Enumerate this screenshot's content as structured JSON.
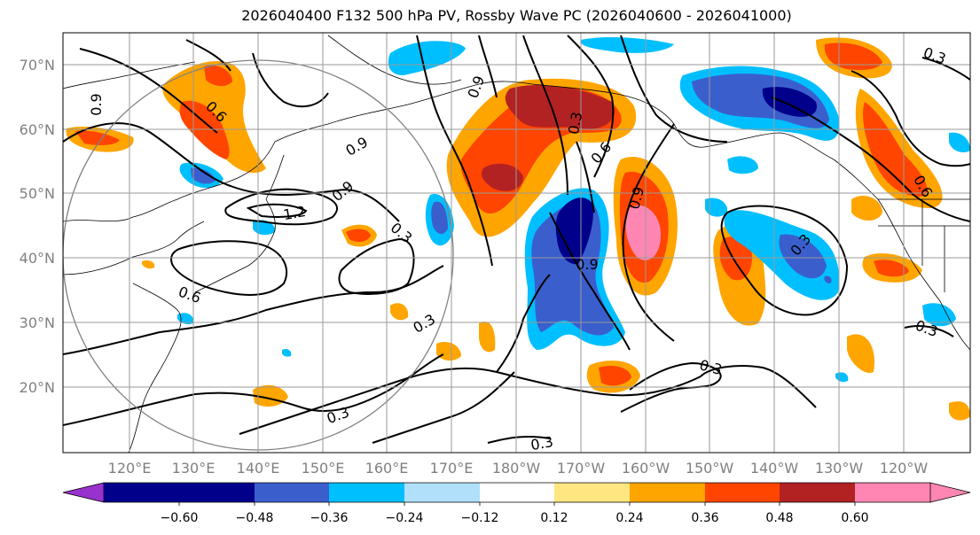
{
  "title": "2026040400 F132 500 hPa PV, Rossby Wave PC (2026040600 - 2026041000)",
  "map": {
    "lat_labels": [
      "70°N",
      "60°N",
      "50°N",
      "40°N",
      "30°N",
      "20°N"
    ],
    "lon_labels": [
      "120°E",
      "130°E",
      "140°E",
      "150°E",
      "160°E",
      "170°E",
      "180°W",
      "170°W",
      "160°W",
      "150°W",
      "140°W",
      "130°W",
      "120°W"
    ],
    "contour_labels": [
      "0.9",
      "0.6",
      "0.9",
      "0.9",
      "1.2",
      "0.3",
      "0.6",
      "0.3",
      "0.9",
      "0.3",
      "0.9",
      "0.9",
      "0.6",
      "0.3",
      "0.3",
      "0.3",
      "0.3",
      "0.6",
      "0.3",
      "0.3"
    ]
  },
  "colorbar": {
    "ticks": [
      "−0.60",
      "−0.48",
      "−0.36",
      "−0.24",
      "−0.12",
      "0.12",
      "0.24",
      "0.36",
      "0.48",
      "0.60"
    ],
    "colors": [
      "#9932cc",
      "#00008b",
      "#3a5fcd",
      "#00bfff",
      "#b0e0fa",
      "#ffffff",
      "#ffe680",
      "#ffa500",
      "#ff4500",
      "#b22222",
      "#ff86b3"
    ]
  }
}
